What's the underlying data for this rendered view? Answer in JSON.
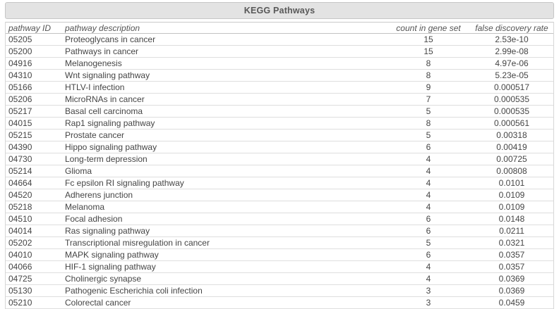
{
  "panel": {
    "title": "KEGG Pathways"
  },
  "table": {
    "columns": [
      "pathway ID",
      "pathway description",
      "count in gene set",
      "false discovery rate"
    ],
    "rows": [
      {
        "pathway_id": "05205",
        "description": "Proteoglycans in cancer",
        "count": "15",
        "fdr": "2.53e-10"
      },
      {
        "pathway_id": "05200",
        "description": "Pathways in cancer",
        "count": "15",
        "fdr": "2.99e-08"
      },
      {
        "pathway_id": "04916",
        "description": "Melanogenesis",
        "count": "8",
        "fdr": "4.97e-06"
      },
      {
        "pathway_id": "04310",
        "description": "Wnt signaling pathway",
        "count": "8",
        "fdr": "5.23e-05"
      },
      {
        "pathway_id": "05166",
        "description": "HTLV-I infection",
        "count": "9",
        "fdr": "0.000517"
      },
      {
        "pathway_id": "05206",
        "description": "MicroRNAs in cancer",
        "count": "7",
        "fdr": "0.000535"
      },
      {
        "pathway_id": "05217",
        "description": "Basal cell carcinoma",
        "count": "5",
        "fdr": "0.000535"
      },
      {
        "pathway_id": "04015",
        "description": "Rap1 signaling pathway",
        "count": "8",
        "fdr": "0.000561"
      },
      {
        "pathway_id": "05215",
        "description": "Prostate cancer",
        "count": "5",
        "fdr": "0.00318"
      },
      {
        "pathway_id": "04390",
        "description": "Hippo signaling pathway",
        "count": "6",
        "fdr": "0.00419"
      },
      {
        "pathway_id": "04730",
        "description": "Long-term depression",
        "count": "4",
        "fdr": "0.00725"
      },
      {
        "pathway_id": "05214",
        "description": "Glioma",
        "count": "4",
        "fdr": "0.00808"
      },
      {
        "pathway_id": "04664",
        "description": "Fc epsilon RI signaling pathway",
        "count": "4",
        "fdr": "0.0101"
      },
      {
        "pathway_id": "04520",
        "description": "Adherens junction",
        "count": "4",
        "fdr": "0.0109"
      },
      {
        "pathway_id": "05218",
        "description": "Melanoma",
        "count": "4",
        "fdr": "0.0109"
      },
      {
        "pathway_id": "04510",
        "description": "Focal adhesion",
        "count": "6",
        "fdr": "0.0148"
      },
      {
        "pathway_id": "04014",
        "description": "Ras signaling pathway",
        "count": "6",
        "fdr": "0.0211"
      },
      {
        "pathway_id": "05202",
        "description": "Transcriptional misregulation in cancer",
        "count": "5",
        "fdr": "0.0321"
      },
      {
        "pathway_id": "04010",
        "description": "MAPK signaling pathway",
        "count": "6",
        "fdr": "0.0357"
      },
      {
        "pathway_id": "04066",
        "description": "HIF-1 signaling pathway",
        "count": "4",
        "fdr": "0.0357"
      },
      {
        "pathway_id": "04725",
        "description": "Cholinergic synapse",
        "count": "4",
        "fdr": "0.0369"
      },
      {
        "pathway_id": "05130",
        "description": "Pathogenic Escherichia coli infection",
        "count": "3",
        "fdr": "0.0369"
      },
      {
        "pathway_id": "05210",
        "description": "Colorectal cancer",
        "count": "3",
        "fdr": "0.0459"
      }
    ]
  },
  "colors": {
    "panel_header_bg": "#e3e3e3",
    "panel_header_border": "#c6c6c6",
    "title_text": "#585858",
    "column_header_text": "#555555",
    "row_text": "#454545",
    "row_separator": "#dedede",
    "table_border": "#d7d7d7",
    "background": "#ffffff"
  }
}
